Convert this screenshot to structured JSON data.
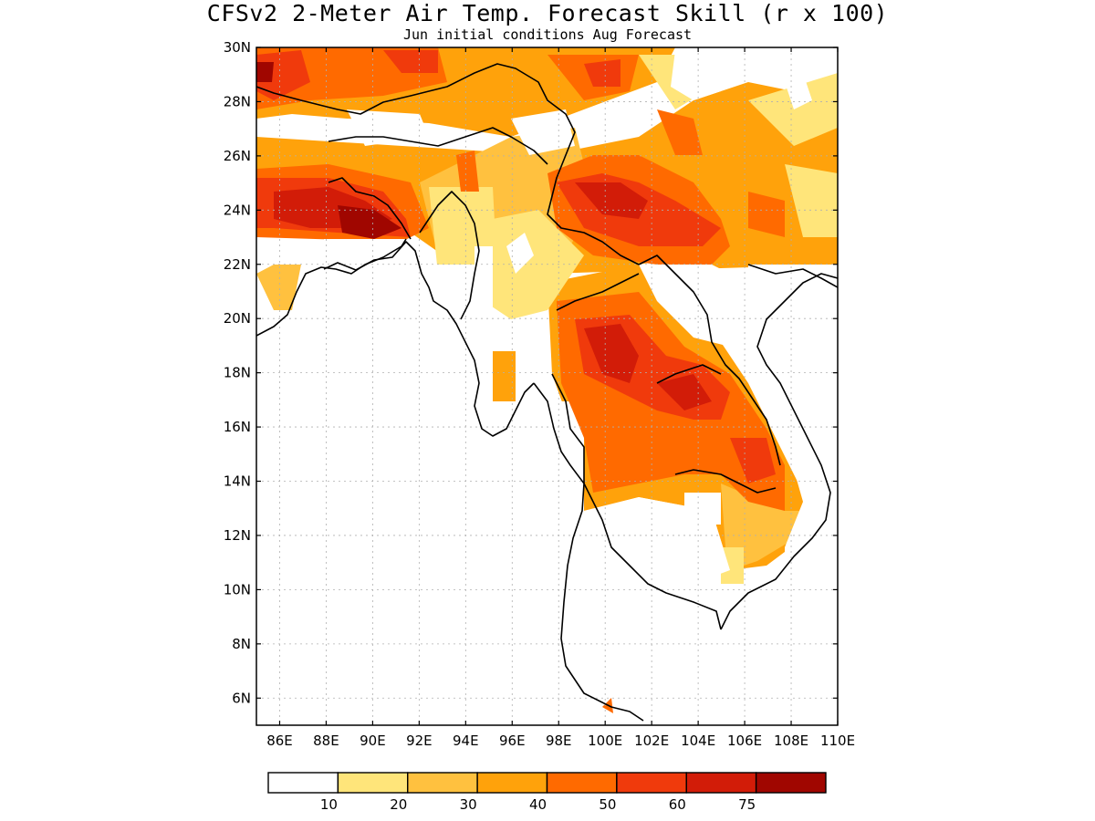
{
  "title": "CFSv2 2-Meter Air Temp. Forecast Skill (r x 100)",
  "subtitle": "Jun initial conditions  Aug Forecast",
  "map": {
    "lon_range": [
      85,
      110
    ],
    "lat_range": [
      5,
      30
    ],
    "lon_ticks": [
      "86E",
      "88E",
      "90E",
      "92E",
      "94E",
      "96E",
      "98E",
      "100E",
      "102E",
      "104E",
      "106E",
      "108E",
      "110E"
    ],
    "lat_ticks": [
      "30N",
      "28N",
      "26N",
      "24N",
      "22N",
      "20N",
      "18N",
      "16N",
      "14N",
      "12N",
      "10N",
      "8N",
      "6N"
    ]
  },
  "colorbar": {
    "labels": [
      "10",
      "20",
      "30",
      "40",
      "50",
      "60",
      "75"
    ],
    "colors": [
      "#ffffff",
      "#ffe57a",
      "#ffc13f",
      "#ffa20b",
      "#ff6a00",
      "#f03a0c",
      "#d21c08",
      "#a00600"
    ]
  }
}
